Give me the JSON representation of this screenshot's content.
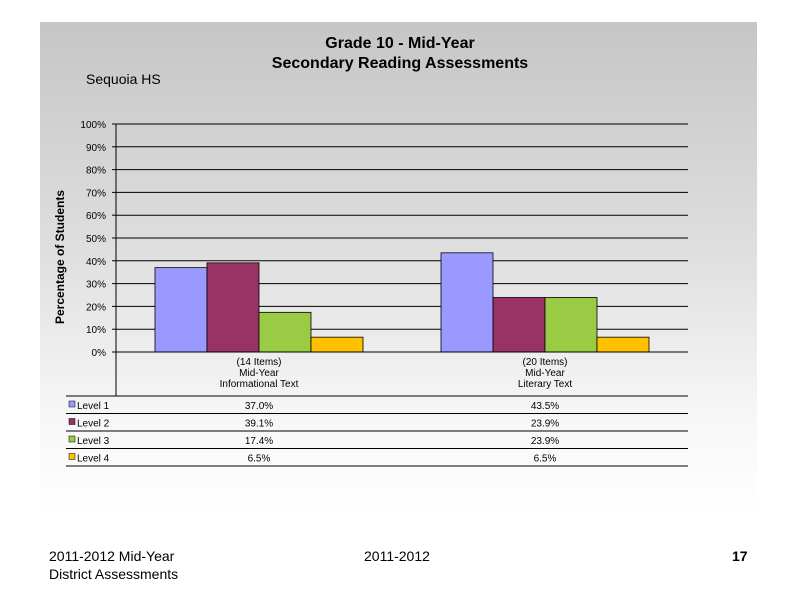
{
  "chart_data": {
    "type": "bar",
    "title": "Grade 10 - Mid-Year",
    "subtitle": "Secondary Reading Assessments",
    "school": "Sequoia HS",
    "ylabel": "Percentage of Students",
    "ylim": [
      0,
      100
    ],
    "y_ticks": [
      "0%",
      "10%",
      "20%",
      "30%",
      "40%",
      "50%",
      "60%",
      "70%",
      "80%",
      "90%",
      "100%"
    ],
    "categories": [
      [
        "(14 Items)",
        "Mid-Year",
        "Informational Text"
      ],
      [
        "(20 Items)",
        "Mid-Year",
        "Literary Text"
      ]
    ],
    "series": [
      {
        "name": "Level 1",
        "color": "#9999ff",
        "values": [
          37.0,
          43.5
        ],
        "labels": [
          "37.0%",
          "43.5%"
        ]
      },
      {
        "name": "Level 2",
        "color": "#993366",
        "values": [
          39.1,
          23.9
        ],
        "labels": [
          "39.1%",
          "23.9%"
        ]
      },
      {
        "name": "Level 3",
        "color": "#99cc44",
        "values": [
          17.4,
          23.9
        ],
        "labels": [
          "17.4%",
          "23.9%"
        ]
      },
      {
        "name": "Level 4",
        "color": "#ffc000",
        "values": [
          6.5,
          6.5
        ],
        "labels": [
          "6.5%",
          "6.5%"
        ]
      }
    ],
    "grid": true,
    "legend": "data-table"
  },
  "footer": {
    "left_line1": "2011-2012  Mid-Year",
    "left_line2": "District Assessments",
    "center": "2011-2012",
    "page": "17"
  }
}
